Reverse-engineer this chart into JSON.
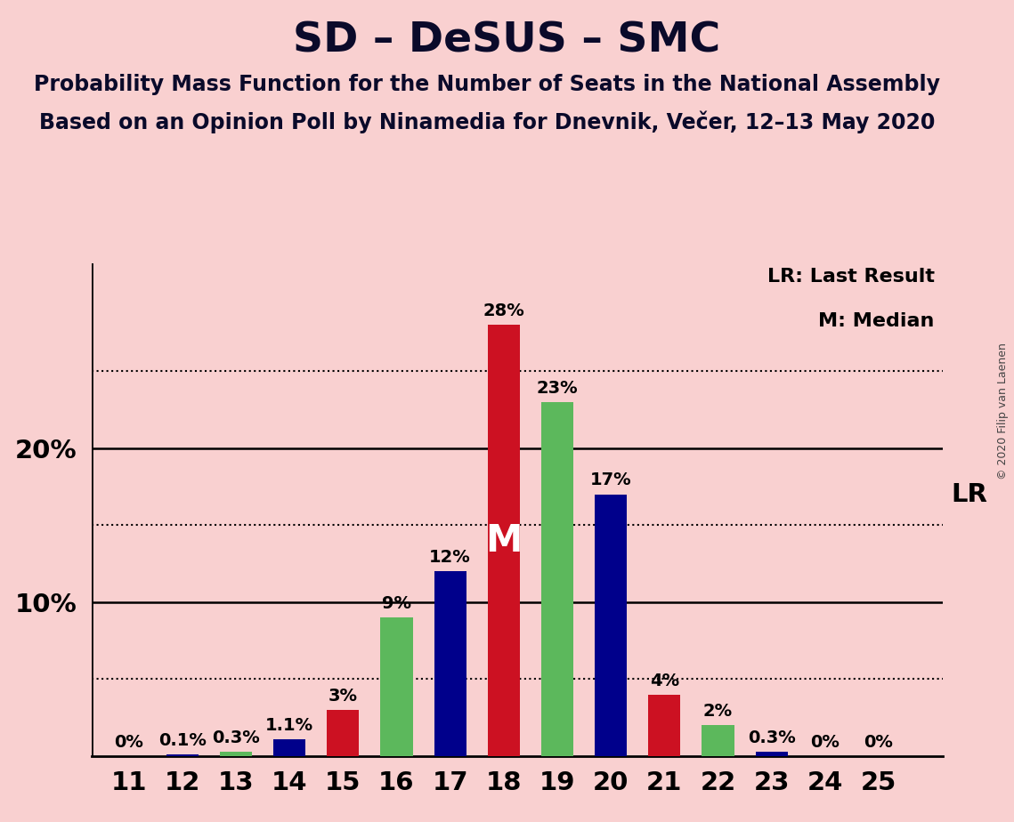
{
  "title": "SD – DeSUS – SMC",
  "subtitle1": "Probability Mass Function for the Number of Seats in the National Assembly",
  "subtitle2": "Based on an Opinion Poll by Ninamedia for Dnevnik, Večer, 12–13 May 2020",
  "copyright": "© 2020 Filip van Laenen",
  "legend_lr": "LR: Last Result",
  "legend_m": "M: Median",
  "seats": [
    11,
    12,
    13,
    14,
    15,
    16,
    17,
    18,
    19,
    20,
    21,
    22,
    23,
    24,
    25
  ],
  "blue_values": [
    0.0,
    0.1,
    0.0,
    1.1,
    0.0,
    0.0,
    12.0,
    0.0,
    0.0,
    17.0,
    0.0,
    0.0,
    0.3,
    0.0,
    0.0
  ],
  "red_values": [
    0.0,
    0.0,
    0.0,
    0.0,
    3.0,
    0.0,
    0.0,
    28.0,
    0.0,
    0.0,
    4.0,
    0.0,
    0.0,
    0.0,
    0.0
  ],
  "green_values": [
    0.0,
    0.0,
    0.3,
    0.0,
    0.0,
    9.0,
    0.0,
    0.0,
    23.0,
    0.0,
    0.0,
    2.0,
    0.0,
    0.0,
    0.0
  ],
  "label_texts": [
    "0%",
    "0.1%",
    "0.3%",
    "1.1%",
    "3%",
    "9%",
    "12%",
    "28%",
    "23%",
    "17%",
    "4%",
    "2%",
    "0.3%",
    "0%",
    "0%"
  ],
  "label_heights": [
    0.0,
    0.1,
    0.3,
    1.1,
    3.0,
    9.0,
    12.0,
    28.0,
    23.0,
    17.0,
    4.0,
    2.0,
    0.3,
    0.0,
    0.0
  ],
  "blue_color": "#00008B",
  "red_color": "#CC1122",
  "green_color": "#5cb85c",
  "background_color": "#f9d0d0",
  "bar_width": 0.6,
  "ylim_max": 32,
  "median_seat": 18,
  "lr_seat": 20,
  "lr_value": 17.0,
  "title_fontsize": 34,
  "subtitle_fontsize": 17,
  "annotation_fontsize": 14,
  "axis_fontsize": 21,
  "legend_fontsize": 16,
  "copyright_fontsize": 9
}
